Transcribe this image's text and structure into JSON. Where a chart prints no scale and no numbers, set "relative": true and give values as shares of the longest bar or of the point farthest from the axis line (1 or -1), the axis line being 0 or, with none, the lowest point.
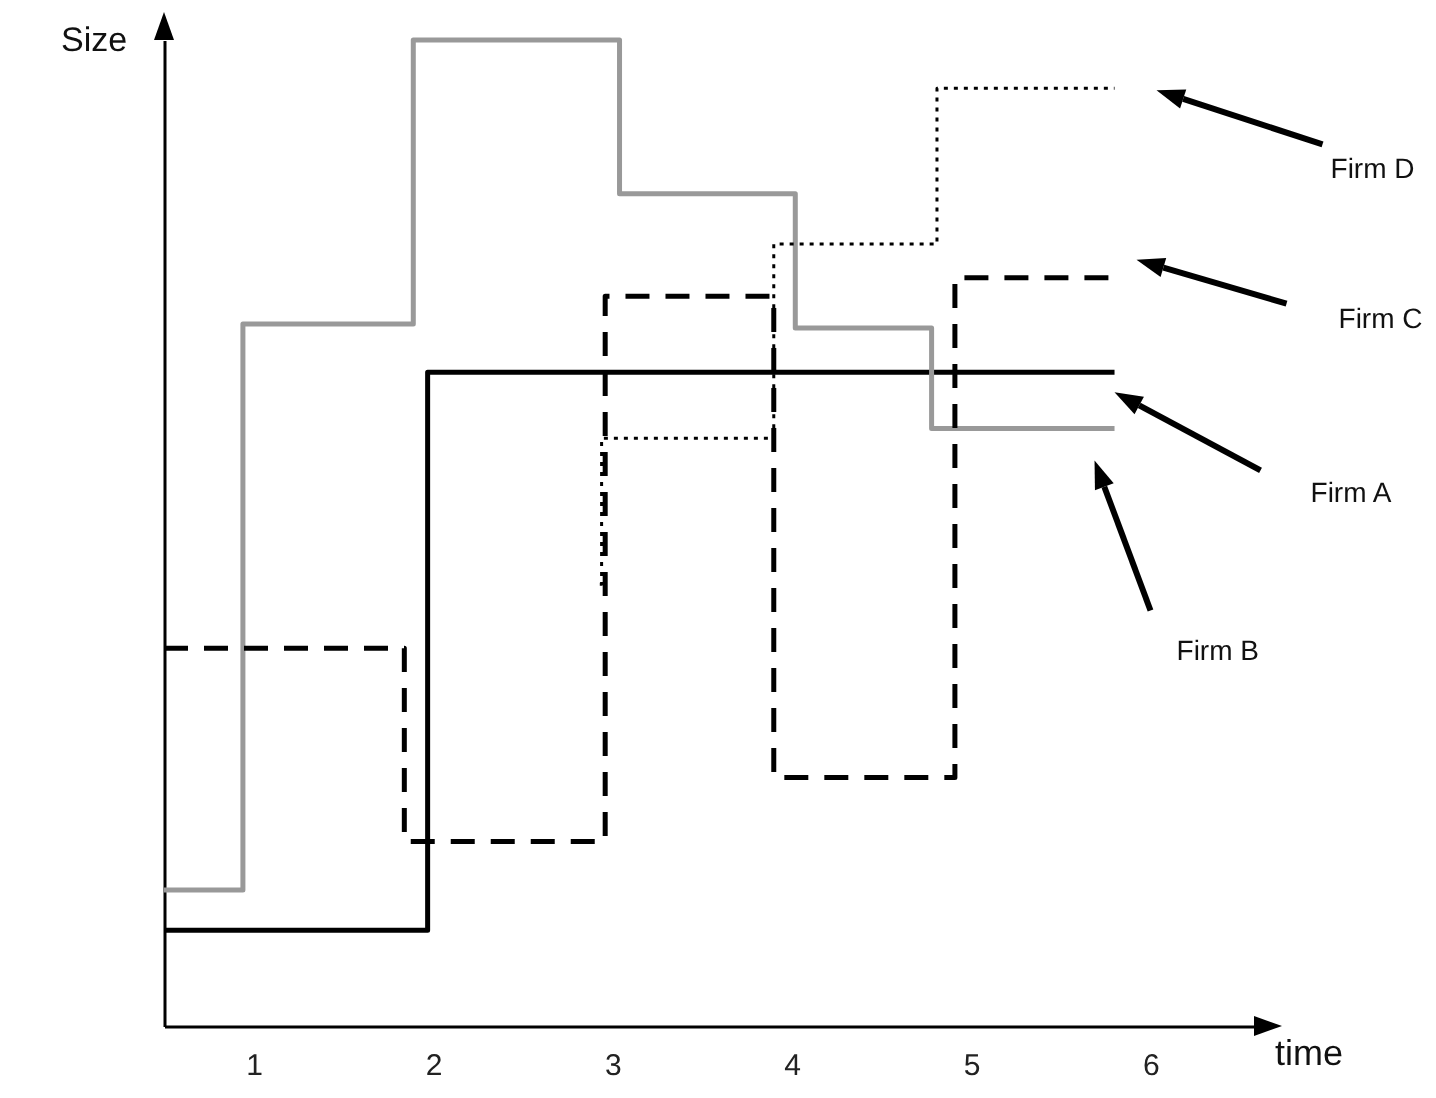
{
  "chart_data": {
    "type": "step",
    "relative": true,
    "xlabel": "time",
    "ylabel": "Size",
    "xlim": [
      0.5,
      6.6
    ],
    "xticks": [
      1,
      2,
      3,
      4,
      5,
      6
    ],
    "grid": false,
    "tick_labels": "x",
    "marker": "none",
    "series": [
      {
        "name": "Firm A",
        "color": "#000000",
        "line_style": "solid",
        "x": [
          0.5,
          1.97,
          5.8
        ],
        "values": [
          0.097,
          0.663,
          0.663
        ]
      },
      {
        "name": "Firm B",
        "color": "#999999",
        "line_style": "solid",
        "x": [
          0.5,
          0.94,
          1.89,
          3.04,
          4.02,
          4.78,
          5.8
        ],
        "values": [
          0.138,
          0.712,
          1,
          0.844,
          0.708,
          0.606,
          0.606
        ]
      },
      {
        "name": "Firm C",
        "color": "#000000",
        "line_style": "dashed",
        "x": [
          0.5,
          1.84,
          2.96,
          3.9,
          4.91,
          5.8
        ],
        "values": [
          0.383,
          0.187,
          0.74,
          0.252,
          0.759,
          0.759
        ]
      },
      {
        "name": "Firm D",
        "color": "#000000",
        "line_style": "dotted",
        "x": [
          2.93,
          2.94,
          3.9,
          4.81,
          5.8
        ],
        "values": [
          0.448,
          0.596,
          0.793,
          0.951,
          0.951
        ]
      }
    ]
  }
}
